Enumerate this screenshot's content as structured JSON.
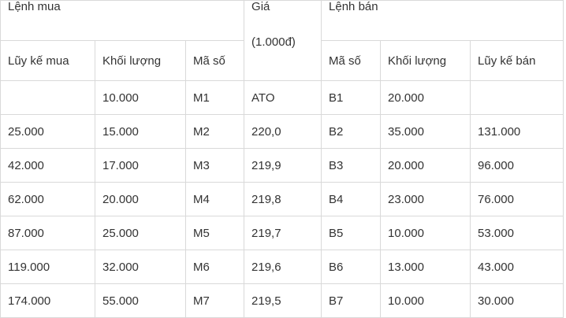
{
  "header": {
    "buy_group": "Lệnh mua",
    "price_label": "Giá",
    "price_unit": "(1.000đ)",
    "sell_group": "Lệnh bán",
    "buy_cumulative": "Lũy kế mua",
    "buy_volume": "Khối lượng",
    "buy_code": "Mã số",
    "sell_code": "Mã số",
    "sell_volume": "Khối lượng",
    "sell_cumulative": "Lũy kế bán"
  },
  "rows": [
    {
      "buy_cum": "",
      "buy_vol": "10.000",
      "buy_code": "M1",
      "price": "ATO",
      "sell_code": "B1",
      "sell_vol": "20.000",
      "sell_cum": ""
    },
    {
      "buy_cum": "25.000",
      "buy_vol": "15.000",
      "buy_code": "M2",
      "price": "220,0",
      "sell_code": "B2",
      "sell_vol": "35.000",
      "sell_cum": "131.000"
    },
    {
      "buy_cum": "42.000",
      "buy_vol": "17.000",
      "buy_code": "M3",
      "price": "219,9",
      "sell_code": "B3",
      "sell_vol": "20.000",
      "sell_cum": "96.000"
    },
    {
      "buy_cum": "62.000",
      "buy_vol": "20.000",
      "buy_code": "M4",
      "price": "219,8",
      "sell_code": "B4",
      "sell_vol": "23.000",
      "sell_cum": "76.000"
    },
    {
      "buy_cum": "87.000",
      "buy_vol": "25.000",
      "buy_code": "M5",
      "price": "219,7",
      "sell_code": "B5",
      "sell_vol": "10.000",
      "sell_cum": "53.000"
    },
    {
      "buy_cum": "119.000",
      "buy_vol": "32.000",
      "buy_code": "M6",
      "price": "219,6",
      "sell_code": "B6",
      "sell_vol": "13.000",
      "sell_cum": "43.000"
    },
    {
      "buy_cum": "174.000",
      "buy_vol": "55.000",
      "buy_code": "M7",
      "price": "219,5",
      "sell_code": "B7",
      "sell_vol": "10.000",
      "sell_cum": "30.000"
    }
  ]
}
